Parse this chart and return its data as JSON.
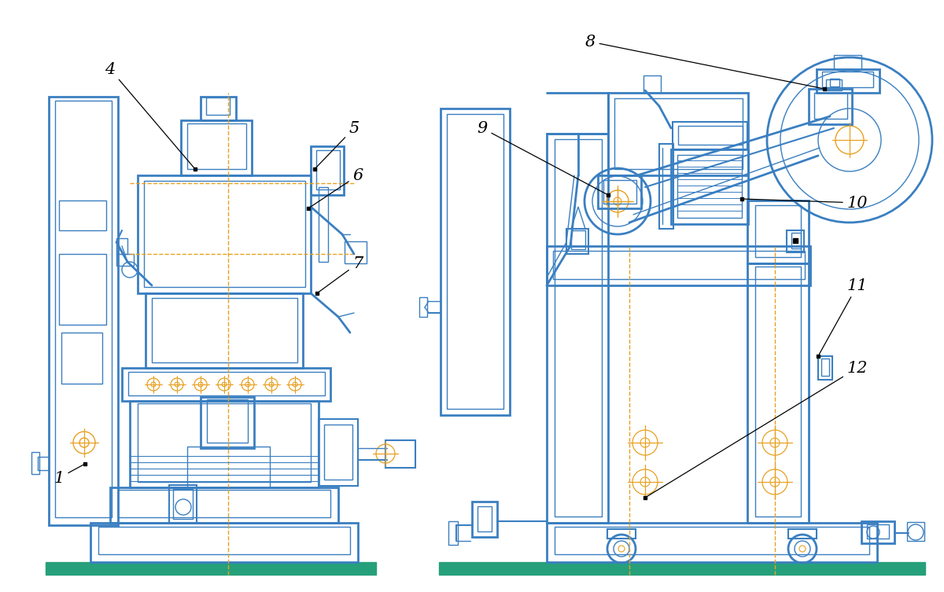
{
  "bg_color": "#ffffff",
  "blue": "#3a7fc1",
  "orange": "#e8a020",
  "green": "#26a07a",
  "black": "#000000",
  "fig_width": 12.0,
  "fig_height": 7.53
}
